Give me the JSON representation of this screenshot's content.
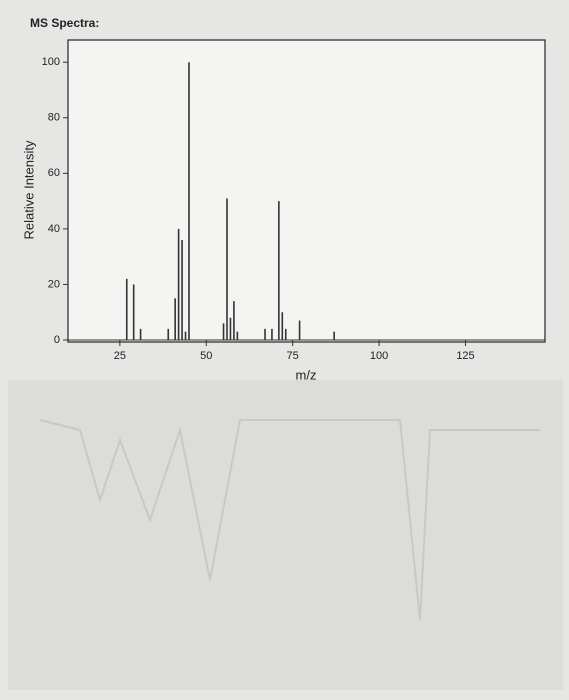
{
  "chart_data": {
    "type": "stem",
    "title": "MS Spectra:",
    "x_label": "m/z",
    "y_label": "Relative Intensity",
    "x": [
      27,
      29,
      31,
      39,
      41,
      42,
      43,
      44,
      45,
      55,
      56,
      57,
      58,
      59,
      67,
      69,
      71,
      72,
      73,
      77,
      87
    ],
    "values": [
      22,
      20,
      4,
      4,
      15,
      40,
      36,
      3,
      100,
      6,
      51,
      8,
      14,
      3,
      4,
      4,
      50,
      10,
      4,
      7,
      3
    ],
    "color": "#333333",
    "xlim": [
      10,
      148
    ],
    "xticks": [
      25,
      50,
      75,
      100,
      125
    ],
    "ylim": [
      0,
      108
    ],
    "yticks": [
      0,
      20,
      40,
      60,
      80,
      100
    ]
  }
}
